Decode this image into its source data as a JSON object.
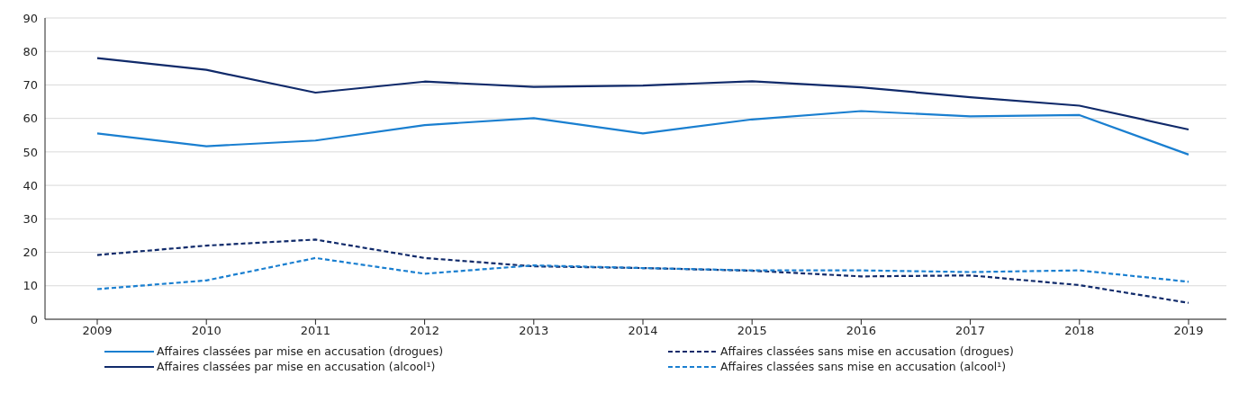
{
  "chart_data": {
    "type": "line",
    "categories": [
      "2009",
      "2010",
      "2011",
      "2012",
      "2013",
      "2014",
      "2015",
      "2016",
      "2017",
      "2018",
      "2019"
    ],
    "series": [
      {
        "name": "Affaires classées par mise en accusation (drogues)",
        "color": "#1a7fd0",
        "line_style": "solid",
        "values": [
          55.5,
          51.7,
          53.4,
          58,
          60.1,
          55.5,
          59.7,
          62.2,
          60.6,
          61,
          49.2
        ]
      },
      {
        "name": "Affaires classées sans mise en accusation (drogues)",
        "color": "#102a6a",
        "line_style": "dashed",
        "values": [
          19.2,
          22,
          23.8,
          18.3,
          15.8,
          15.3,
          14.5,
          12.8,
          13.1,
          10.2,
          4.9
        ]
      },
      {
        "name": "Affaires classées par mise en accusation (alcool¹)",
        "color": "#102a6a",
        "line_style": "solid",
        "values": [
          78,
          74.5,
          67.7,
          71,
          69.4,
          69.8,
          71.1,
          69.3,
          66.3,
          63.8,
          56.7
        ]
      },
      {
        "name": "Affaires classées sans mise en accusation (alcool¹)",
        "color": "#1a7fd0",
        "line_style": "dashed",
        "values": [
          9,
          11.6,
          18.3,
          13.6,
          16.1,
          15.3,
          14.6,
          14.6,
          14.1,
          14.6,
          11.2
        ]
      }
    ],
    "ylim": [
      0,
      90
    ],
    "yticks": [
      0,
      10,
      20,
      30,
      40,
      50,
      60,
      70,
      80,
      90
    ],
    "grid": "y",
    "legend": "bottom",
    "marker": "none"
  }
}
